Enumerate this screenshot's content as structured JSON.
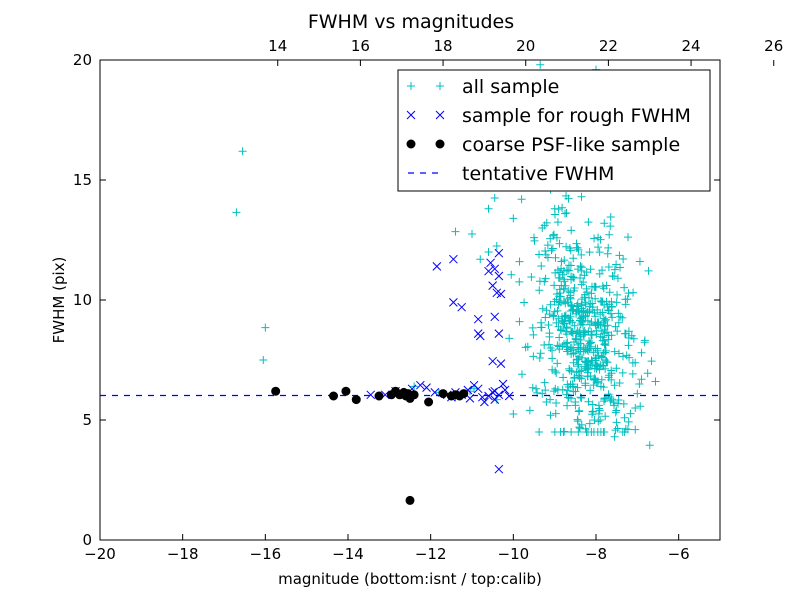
{
  "chart_data": {
    "type": "scatter",
    "title": "FWHM vs magnitudes",
    "xlabel": "magnitude (bottom:isnt / top:calib)",
    "ylabel": "FWHM (pix)",
    "xlim": [
      -20,
      -5
    ],
    "ylim": [
      0,
      20
    ],
    "x_ticks": [
      -20,
      -18,
      -16,
      -14,
      -12,
      -10,
      -8,
      -6
    ],
    "x_tick_labels": [
      "−20",
      "−18",
      "−16",
      "−14",
      "−12",
      "−10",
      "−8",
      "−6"
    ],
    "y_ticks": [
      0,
      5,
      10,
      15,
      20
    ],
    "y_tick_labels": [
      "0",
      "5",
      "10",
      "15",
      "20"
    ],
    "top_axis": {
      "ticks": [
        14,
        16,
        18,
        20,
        22,
        24,
        26
      ],
      "tick_labels": [
        "14",
        "16",
        "18",
        "20",
        "22",
        "24",
        "26"
      ],
      "offset_from_bottom_axis": 29.7
    },
    "grid": false,
    "legend_position": "upper-right",
    "tentative_fwhm": 6.02,
    "series": [
      {
        "name": "all sample",
        "marker": "plus",
        "color": "#00bfbf",
        "cluster": {
          "x_center": -8.0,
          "y_center": 8.3,
          "count": 560,
          "seed": 7
        },
        "points": [
          [
            -16.7,
            13.65
          ],
          [
            -16.55,
            16.2
          ],
          [
            -16.0,
            8.85
          ],
          [
            -16.05,
            7.5
          ],
          [
            -9.35,
            19.8
          ],
          [
            -8.0,
            19.6
          ],
          [
            -10.45,
            14.25
          ],
          [
            -10.6,
            13.8
          ],
          [
            -10.4,
            12.25
          ],
          [
            -10.6,
            12.0
          ],
          [
            -11.0,
            12.75
          ],
          [
            -11.4,
            12.85
          ],
          [
            -10.8,
            11.7
          ],
          [
            -10.0,
            13.4
          ],
          [
            -9.8,
            14.2
          ],
          [
            -6.75,
            6.95
          ],
          [
            -6.95,
            6.5
          ],
          [
            -7.05,
            5.5
          ],
          [
            -6.7,
            3.95
          ],
          [
            -7.05,
            4.6
          ],
          [
            -7.55,
            4.3
          ],
          [
            -7.9,
            5.0
          ],
          [
            -8.15,
            4.85
          ],
          [
            -9.1,
            5.2
          ],
          [
            -10.0,
            5.25
          ],
          [
            -9.6,
            5.4
          ],
          [
            -9.2,
            5.75
          ],
          [
            -8.7,
            5.6
          ],
          [
            -10.4,
            5.85
          ],
          [
            -11.05,
            6.2
          ],
          [
            -10.95,
            6.3
          ],
          [
            -11.4,
            5.95
          ],
          [
            -11.8,
            6.15
          ],
          [
            -12.4,
            6.4
          ],
          [
            -9.45,
            6.3
          ],
          [
            -9.3,
            6.1
          ],
          [
            -9.85,
            9.1
          ],
          [
            -9.65,
            8.05
          ],
          [
            -10.1,
            8.4
          ],
          [
            -10.05,
            11.05
          ],
          [
            -9.85,
            11.6
          ],
          [
            -9.5,
            12.6
          ],
          [
            -9.3,
            13.0
          ],
          [
            -8.75,
            13.6
          ],
          [
            -8.35,
            14.3
          ],
          [
            -8.55,
            15.4
          ],
          [
            -8.75,
            14.95
          ],
          [
            -8.95,
            16.0
          ],
          [
            -9.1,
            14.6
          ],
          [
            -8.6,
            12.9
          ],
          [
            -7.8,
            13.2
          ],
          [
            -7.95,
            12.6
          ],
          [
            -7.6,
            11.0
          ],
          [
            -7.5,
            9.9
          ],
          [
            -7.3,
            8.6
          ],
          [
            -7.2,
            7.6
          ],
          [
            -7.55,
            6.45
          ],
          [
            -7.65,
            5.8
          ],
          [
            -7.0,
            6.1
          ],
          [
            -6.9,
            6.7
          ]
        ]
      },
      {
        "name": "sample for rough FWHM",
        "marker": "x",
        "color": "#0000ff",
        "points": [
          [
            -12.6,
            6.1
          ],
          [
            -12.45,
            6.3
          ],
          [
            -12.25,
            6.45
          ],
          [
            -12.1,
            6.35
          ],
          [
            -11.9,
            6.15
          ],
          [
            -11.6,
            6.05
          ],
          [
            -11.5,
            5.95
          ],
          [
            -11.4,
            6.15
          ],
          [
            -11.25,
            6.05
          ],
          [
            -11.1,
            6.25
          ],
          [
            -11.05,
            5.9
          ],
          [
            -10.95,
            6.45
          ],
          [
            -10.85,
            6.3
          ],
          [
            -10.75,
            5.95
          ],
          [
            -10.7,
            5.75
          ],
          [
            -10.6,
            6.0
          ],
          [
            -10.5,
            6.15
          ],
          [
            -10.45,
            5.85
          ],
          [
            -10.35,
            6.05
          ],
          [
            -10.2,
            6.25
          ],
          [
            -10.1,
            6.0
          ],
          [
            -13.1,
            6.05
          ],
          [
            -13.45,
            6.05
          ],
          [
            -12.85,
            6.2
          ],
          [
            -11.85,
            11.4
          ],
          [
            -11.45,
            11.7
          ],
          [
            -11.45,
            9.9
          ],
          [
            -11.25,
            9.7
          ],
          [
            -10.85,
            9.2
          ],
          [
            -10.85,
            8.6
          ],
          [
            -10.8,
            8.5
          ],
          [
            -10.55,
            11.55
          ],
          [
            -10.45,
            11.3
          ],
          [
            -10.35,
            11.95
          ],
          [
            -10.35,
            11.0
          ],
          [
            -10.6,
            11.2
          ],
          [
            -10.5,
            10.6
          ],
          [
            -10.4,
            10.3
          ],
          [
            -10.3,
            10.25
          ],
          [
            -10.45,
            9.3
          ],
          [
            -10.35,
            8.6
          ],
          [
            -10.5,
            7.45
          ],
          [
            -10.3,
            7.35
          ],
          [
            -10.25,
            6.5
          ],
          [
            -10.45,
            6.2
          ],
          [
            -10.35,
            2.95
          ]
        ]
      },
      {
        "name": "coarse PSF-like sample",
        "marker": "circle",
        "color": "#000000",
        "points": [
          [
            -15.75,
            6.2
          ],
          [
            -14.35,
            6.0
          ],
          [
            -14.05,
            6.2
          ],
          [
            -13.8,
            5.85
          ],
          [
            -13.25,
            6.0
          ],
          [
            -12.95,
            6.05
          ],
          [
            -12.85,
            6.2
          ],
          [
            -12.75,
            6.05
          ],
          [
            -12.65,
            6.15
          ],
          [
            -12.6,
            6.0
          ],
          [
            -12.55,
            6.1
          ],
          [
            -12.5,
            5.9
          ],
          [
            -12.4,
            6.05
          ],
          [
            -12.05,
            5.75
          ],
          [
            -11.7,
            6.1
          ],
          [
            -11.5,
            6.0
          ],
          [
            -11.4,
            6.05
          ],
          [
            -11.3,
            6.0
          ],
          [
            -11.2,
            6.1
          ],
          [
            -12.5,
            1.65
          ]
        ]
      },
      {
        "name": "tentative FWHM",
        "marker": "dashed-line",
        "color": "#0000ff"
      }
    ]
  }
}
